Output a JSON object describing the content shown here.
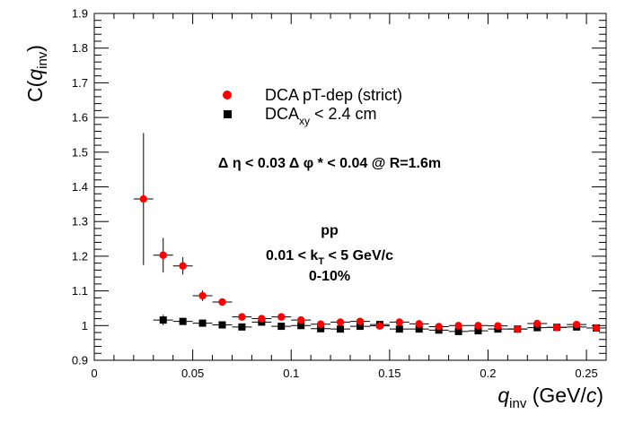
{
  "chart_data": {
    "type": "scatter",
    "x_axis": {
      "label_main": "q",
      "label_sub": "inv",
      "label_unit": " (GeV/",
      "label_unit_italic": "c",
      "label_unit_close": ")",
      "range": [
        0,
        0.26
      ],
      "ticks": [
        0,
        0.05,
        0.1,
        0.15,
        0.2,
        0.25
      ],
      "tick_labels": [
        "0",
        "0.05",
        "0.1",
        "0.15",
        "0.2",
        "0.25"
      ]
    },
    "y_axis": {
      "label_prefix": "C(",
      "label_main": "q",
      "label_sub": "inv",
      "label_close": ")",
      "range": [
        0.9,
        1.9
      ],
      "ticks": [
        0.9,
        1.0,
        1.1,
        1.2,
        1.3,
        1.4,
        1.5,
        1.6,
        1.7,
        1.8,
        1.9
      ],
      "tick_labels": [
        "0.9",
        "1",
        "1.1",
        "1.2",
        "1.3",
        "1.4",
        "1.5",
        "1.6",
        "1.7",
        "1.8",
        "1.9"
      ]
    },
    "grid": false,
    "legend_position": "top-center",
    "series": [
      {
        "name": "DCA pT-dep (strict)",
        "marker": "circle",
        "color": "#ff0000",
        "x_err": 0.005,
        "points": [
          {
            "x": 0.025,
            "y": 1.365,
            "yerr": 0.19
          },
          {
            "x": 0.035,
            "y": 1.203,
            "yerr": 0.05
          },
          {
            "x": 0.045,
            "y": 1.172,
            "yerr": 0.025
          },
          {
            "x": 0.055,
            "y": 1.086,
            "yerr": 0.015
          },
          {
            "x": 0.065,
            "y": 1.068,
            "yerr": 0.01
          },
          {
            "x": 0.075,
            "y": 1.025,
            "yerr": 0.008
          },
          {
            "x": 0.085,
            "y": 1.02,
            "yerr": 0.008
          },
          {
            "x": 0.095,
            "y": 1.025,
            "yerr": 0.008
          },
          {
            "x": 0.105,
            "y": 1.016,
            "yerr": 0.006
          },
          {
            "x": 0.115,
            "y": 1.004,
            "yerr": 0.006
          },
          {
            "x": 0.125,
            "y": 1.01,
            "yerr": 0.006
          },
          {
            "x": 0.135,
            "y": 1.012,
            "yerr": 0.006
          },
          {
            "x": 0.145,
            "y": 0.999,
            "yerr": 0.006
          },
          {
            "x": 0.155,
            "y": 1.01,
            "yerr": 0.005
          },
          {
            "x": 0.165,
            "y": 1.005,
            "yerr": 0.005
          },
          {
            "x": 0.175,
            "y": 0.997,
            "yerr": 0.005
          },
          {
            "x": 0.185,
            "y": 1.0,
            "yerr": 0.005
          },
          {
            "x": 0.195,
            "y": 1.0,
            "yerr": 0.005
          },
          {
            "x": 0.205,
            "y": 0.999,
            "yerr": 0.005
          },
          {
            "x": 0.215,
            "y": 0.99,
            "yerr": 0.005
          },
          {
            "x": 0.225,
            "y": 1.006,
            "yerr": 0.005
          },
          {
            "x": 0.235,
            "y": 0.995,
            "yerr": 0.005
          },
          {
            "x": 0.245,
            "y": 1.003,
            "yerr": 0.005
          },
          {
            "x": 0.255,
            "y": 0.993,
            "yerr": 0.005
          }
        ]
      },
      {
        "name": "DCA_xy < 2.4 cm",
        "legend_main": "DCA",
        "legend_sub": "xy",
        "legend_rest": " < 2.4 cm",
        "marker": "square",
        "color": "#000000",
        "x_err": 0.005,
        "points": [
          {
            "x": 0.035,
            "y": 1.016,
            "yerr": 0.015
          },
          {
            "x": 0.045,
            "y": 1.012,
            "yerr": 0.01
          },
          {
            "x": 0.055,
            "y": 1.007,
            "yerr": 0.008
          },
          {
            "x": 0.065,
            "y": 1.002,
            "yerr": 0.007
          },
          {
            "x": 0.075,
            "y": 0.996,
            "yerr": 0.006
          },
          {
            "x": 0.085,
            "y": 1.01,
            "yerr": 0.006
          },
          {
            "x": 0.095,
            "y": 0.998,
            "yerr": 0.005
          },
          {
            "x": 0.105,
            "y": 1.0,
            "yerr": 0.005
          },
          {
            "x": 0.115,
            "y": 0.991,
            "yerr": 0.005
          },
          {
            "x": 0.125,
            "y": 0.99,
            "yerr": 0.005
          },
          {
            "x": 0.135,
            "y": 0.998,
            "yerr": 0.005
          },
          {
            "x": 0.145,
            "y": 1.003,
            "yerr": 0.005
          },
          {
            "x": 0.155,
            "y": 0.99,
            "yerr": 0.005
          },
          {
            "x": 0.165,
            "y": 0.99,
            "yerr": 0.005
          },
          {
            "x": 0.175,
            "y": 0.987,
            "yerr": 0.005
          },
          {
            "x": 0.185,
            "y": 0.983,
            "yerr": 0.005
          },
          {
            "x": 0.195,
            "y": 0.985,
            "yerr": 0.005
          },
          {
            "x": 0.205,
            "y": 0.99,
            "yerr": 0.005
          },
          {
            "x": 0.215,
            "y": 0.99,
            "yerr": 0.005
          },
          {
            "x": 0.225,
            "y": 0.994,
            "yerr": 0.005
          },
          {
            "x": 0.235,
            "y": 0.995,
            "yerr": 0.005
          },
          {
            "x": 0.245,
            "y": 0.996,
            "yerr": 0.005
          },
          {
            "x": 0.255,
            "y": 0.993,
            "yerr": 0.005
          }
        ]
      }
    ],
    "annotations": {
      "cuts": "Δ η < 0.03 Δ φ * < 0.04 @ R=1.6m",
      "system": "pp",
      "kt_prefix": "0.01 < k",
      "kt_sub": "T",
      "kt_suffix": " < 5 GeV/c",
      "centrality": "0-10%"
    }
  }
}
